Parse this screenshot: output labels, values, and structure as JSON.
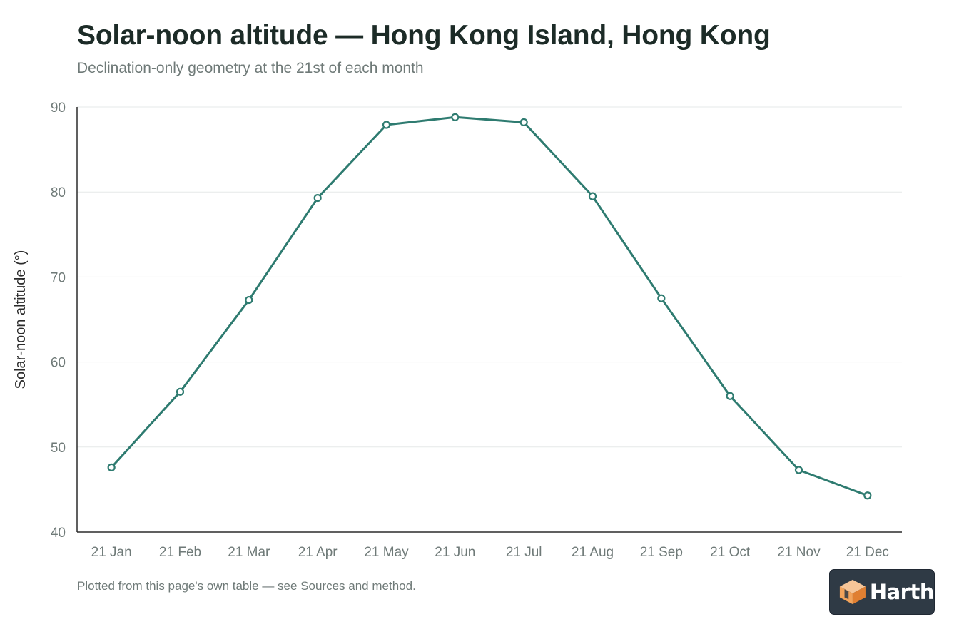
{
  "header": {
    "title": "Solar-noon altitude — Hong Kong Island, Hong Kong",
    "subtitle": "Declination-only geometry at the 21st of each month"
  },
  "footer": {
    "note": "Plotted from this page's own table — see Sources and method."
  },
  "logo": {
    "text": "Harth",
    "icon": "harth-cube-icon"
  },
  "colors": {
    "line": "#2e7b70",
    "grid": "#e6e9e8",
    "axis": "#2b2b2b",
    "tick_text": "#6f7a78"
  },
  "chart_data": {
    "type": "line",
    "title": "Solar-noon altitude — Hong Kong Island, Hong Kong",
    "xlabel": "",
    "ylabel": "Solar-noon altitude (°)",
    "categories": [
      "21 Jan",
      "21 Feb",
      "21 Mar",
      "21 Apr",
      "21 May",
      "21 Jun",
      "21 Jul",
      "21 Aug",
      "21 Sep",
      "21 Oct",
      "21 Nov",
      "21 Dec"
    ],
    "values": [
      47.6,
      56.5,
      67.3,
      79.3,
      87.9,
      88.8,
      88.2,
      79.5,
      67.5,
      56.0,
      47.3,
      44.3
    ],
    "ylim": [
      40,
      90
    ],
    "yticks": [
      40,
      50,
      60,
      70,
      80,
      90
    ],
    "grid": true,
    "legend": "none"
  }
}
